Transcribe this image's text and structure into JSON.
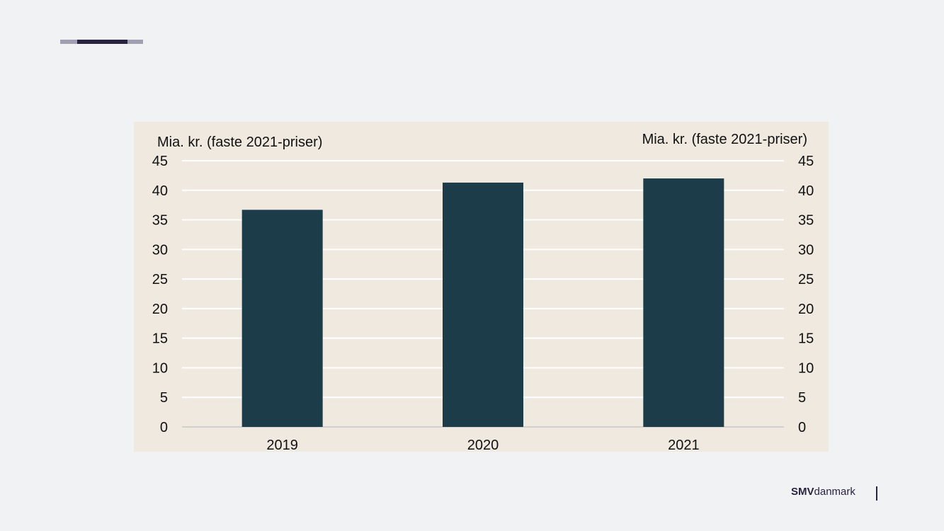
{
  "brand": {
    "name_bold": "SMV",
    "name_rest": "danmark",
    "colors": {
      "accent_dark": "#2a2340",
      "accent_light": "#a39fb2"
    }
  },
  "chart_data": {
    "type": "bar",
    "title": "",
    "ylabel_left": "Mia. kr. (faste 2021-priser)",
    "ylabel_right": "Mia. kr. (faste 2021-priser)",
    "categories": [
      "2019",
      "2020",
      "2021"
    ],
    "values": [
      36.7,
      41.3,
      42.0
    ],
    "ylim": [
      0,
      45
    ],
    "yticks": [
      0,
      5,
      10,
      15,
      20,
      25,
      30,
      35,
      40,
      45
    ],
    "grid": true,
    "legend": "none",
    "colors": {
      "bar": "#1b3c48",
      "background": "#efe9e0",
      "grid": "#ffffff"
    }
  }
}
